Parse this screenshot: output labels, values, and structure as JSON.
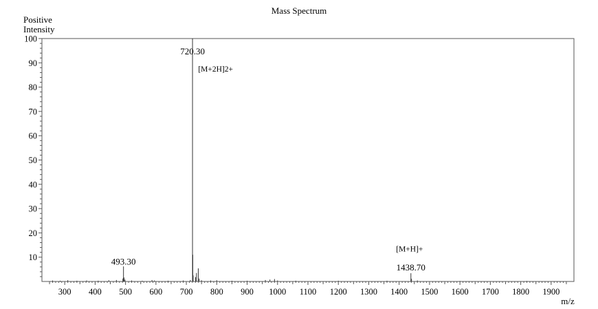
{
  "chart_data": {
    "type": "bar",
    "title": "Mass Spectrum",
    "ylabel_line1": "Positive",
    "ylabel_line2": "Intensity",
    "xlabel": "m/z",
    "xlim": [
      225,
      1975
    ],
    "ylim": [
      0,
      100
    ],
    "xticks": [
      300,
      400,
      500,
      600,
      700,
      800,
      900,
      1000,
      1100,
      1200,
      1300,
      1400,
      1500,
      1600,
      1700,
      1800,
      1900
    ],
    "yticks": [
      10,
      20,
      30,
      40,
      50,
      60,
      70,
      80,
      90,
      100
    ],
    "grid": false,
    "peaks": [
      {
        "mz": 260,
        "intensity": 0.4
      },
      {
        "mz": 285,
        "intensity": 0.3
      },
      {
        "mz": 310,
        "intensity": 0.5
      },
      {
        "mz": 340,
        "intensity": 0.3
      },
      {
        "mz": 372,
        "intensity": 0.4
      },
      {
        "mz": 410,
        "intensity": 0.3
      },
      {
        "mz": 445,
        "intensity": 0.5
      },
      {
        "mz": 470,
        "intensity": 0.6
      },
      {
        "mz": 491.3,
        "intensity": 1.2
      },
      {
        "mz": 493.3,
        "intensity": 6.2
      },
      {
        "mz": 495.3,
        "intensity": 1.6
      },
      {
        "mz": 498.3,
        "intensity": 0.8
      },
      {
        "mz": 520,
        "intensity": 0.4
      },
      {
        "mz": 555,
        "intensity": 0.3
      },
      {
        "mz": 587,
        "intensity": 0.6
      },
      {
        "mz": 595,
        "intensity": 0.4
      },
      {
        "mz": 640,
        "intensity": 0.3
      },
      {
        "mz": 690,
        "intensity": 0.4
      },
      {
        "mz": 713,
        "intensity": 0.6
      },
      {
        "mz": 720.3,
        "intensity": 100
      },
      {
        "mz": 721.3,
        "intensity": 11
      },
      {
        "mz": 722.3,
        "intensity": 2.5
      },
      {
        "mz": 730.3,
        "intensity": 1.8
      },
      {
        "mz": 733.3,
        "intensity": 3.5
      },
      {
        "mz": 739.3,
        "intensity": 5.4
      },
      {
        "mz": 742.3,
        "intensity": 1.2
      },
      {
        "mz": 750,
        "intensity": 0.5
      },
      {
        "mz": 780,
        "intensity": 0.4
      },
      {
        "mz": 800,
        "intensity": 0.5
      },
      {
        "mz": 850,
        "intensity": 0.3
      },
      {
        "mz": 900,
        "intensity": 0.3
      },
      {
        "mz": 960,
        "intensity": 0.6
      },
      {
        "mz": 975,
        "intensity": 0.8
      },
      {
        "mz": 990,
        "intensity": 1.0
      },
      {
        "mz": 1000,
        "intensity": 0.4
      },
      {
        "mz": 1060,
        "intensity": 0.3
      },
      {
        "mz": 1200,
        "intensity": 0.3
      },
      {
        "mz": 1360,
        "intensity": 0.3
      },
      {
        "mz": 1438.7,
        "intensity": 3.4
      },
      {
        "mz": 1440.7,
        "intensity": 1.1
      },
      {
        "mz": 1460,
        "intensity": 0.4
      },
      {
        "mz": 1600,
        "intensity": 0.2
      },
      {
        "mz": 1820,
        "intensity": 0.2
      }
    ],
    "annotations": [
      {
        "text": "720.30",
        "mz": 720.3,
        "y": 93.5,
        "size": "large"
      },
      {
        "text": "[M+2H]2+",
        "mz": 739,
        "y": 86.4,
        "size": "small"
      },
      {
        "text": "493.30",
        "mz": 493.3,
        "y": 7.0,
        "size": "large"
      },
      {
        "text": "[M+H]+",
        "mz": 1390,
        "y": 12.3,
        "size": "small"
      },
      {
        "text": "1438.70",
        "mz": 1438.7,
        "y": 4.6,
        "size": "large"
      }
    ]
  }
}
